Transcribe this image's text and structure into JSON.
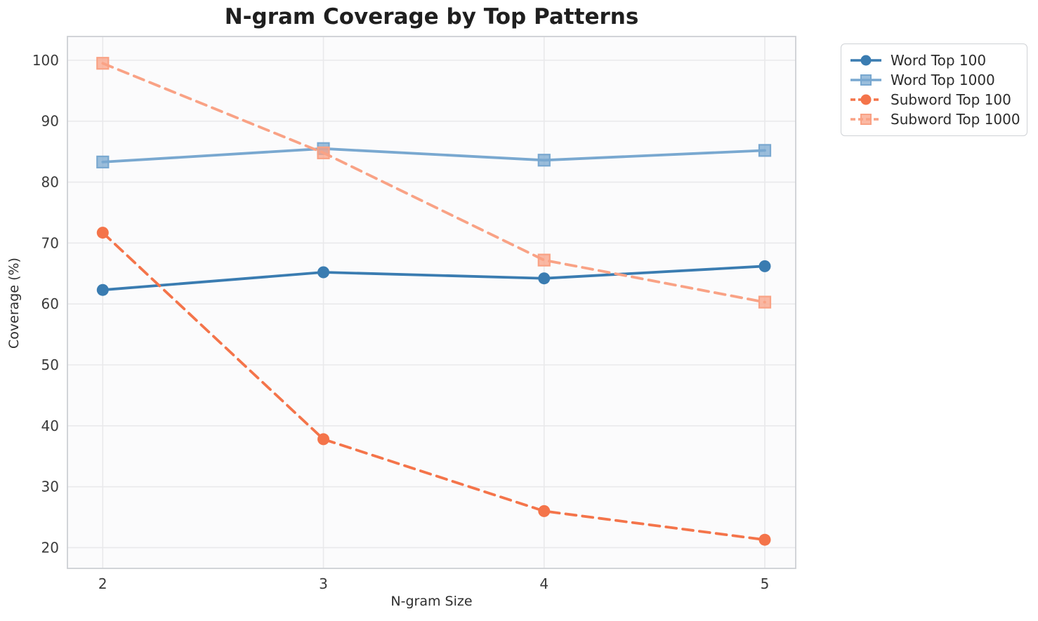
{
  "chart_data": {
    "type": "line",
    "title": "N-gram Coverage by Top Patterns",
    "xlabel": "N-gram Size",
    "ylabel": "Coverage (%)",
    "x": [
      2,
      3,
      4,
      5
    ],
    "x_tick_labels": [
      "2",
      "3",
      "4",
      "5"
    ],
    "y_ticks": [
      20,
      30,
      40,
      50,
      60,
      70,
      80,
      90,
      100
    ],
    "xlim": [
      1.84,
      5.14
    ],
    "ylim": [
      16.6,
      103.9
    ],
    "grid": true,
    "legend_position": "outside-upper-right",
    "series": [
      {
        "name": "Word Top 100",
        "values": [
          62.3,
          65.2,
          64.2,
          66.2
        ],
        "color": "#3a7cb1",
        "marker": "circle",
        "dash": "solid"
      },
      {
        "name": "Word Top 1000",
        "values": [
          83.3,
          85.5,
          83.6,
          85.2
        ],
        "color": "#79a8d0",
        "marker": "square",
        "dash": "solid"
      },
      {
        "name": "Subword Top 100",
        "values": [
          71.7,
          37.8,
          26.0,
          21.3
        ],
        "color": "#f4744a",
        "marker": "circle",
        "dash": "dashed"
      },
      {
        "name": "Subword Top 1000",
        "values": [
          99.5,
          84.8,
          67.2,
          60.3
        ],
        "color": "#f9a285",
        "marker": "square",
        "dash": "dashed"
      }
    ],
    "style": {
      "grid_color": "#e9e9eb",
      "spine_color": "#cdd0d4",
      "plot_bg": "#fbfbfc",
      "tick_color": "#3a3a3a"
    }
  }
}
